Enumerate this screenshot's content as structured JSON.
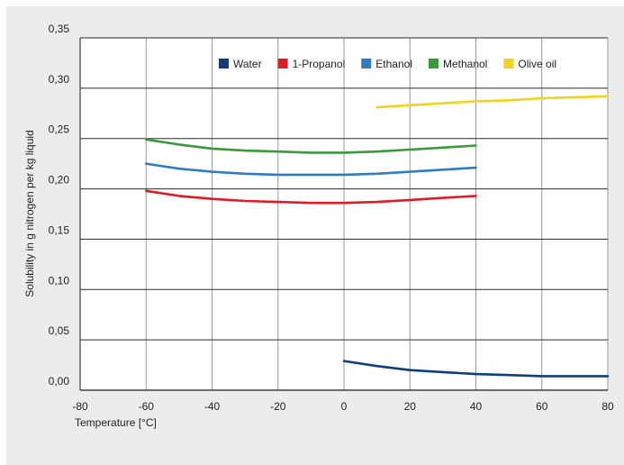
{
  "chart_data": {
    "type": "line",
    "title": "",
    "xlabel": "Temperature [°C]",
    "ylabel": "Solubility in g nitrogen per kg liquid",
    "xlim": [
      -80,
      80
    ],
    "ylim": [
      0,
      0.35
    ],
    "x_ticks": [
      -80,
      -60,
      -40,
      -20,
      0,
      20,
      40,
      60,
      80
    ],
    "x_tick_labels": [
      "-80",
      "-60",
      "-40",
      "-20",
      "0",
      "20",
      "40",
      "60",
      "80"
    ],
    "y_ticks": [
      0,
      0.05,
      0.1,
      0.15,
      0.2,
      0.25,
      0.3,
      0.35
    ],
    "y_tick_labels": [
      "0,00",
      "0,05",
      "0,10",
      "0,15",
      "0,20",
      "0,25",
      "0,30",
      "0,35"
    ],
    "grid": {
      "horizontal": true,
      "vertical": true
    },
    "legend_position": "top",
    "series": [
      {
        "name": "Water",
        "color": "#0d3e7e",
        "x": [
          0,
          10,
          20,
          30,
          40,
          50,
          60,
          70,
          80
        ],
        "y": [
          0.029,
          0.024,
          0.02,
          0.018,
          0.016,
          0.015,
          0.014,
          0.014,
          0.014
        ]
      },
      {
        "name": "1-Propanol",
        "color": "#e01b22",
        "x": [
          -60,
          -50,
          -40,
          -30,
          -20,
          -10,
          0,
          10,
          20,
          30,
          40
        ],
        "y": [
          0.198,
          0.193,
          0.19,
          0.188,
          0.187,
          0.186,
          0.186,
          0.187,
          0.189,
          0.191,
          0.193
        ]
      },
      {
        "name": "Ethanol",
        "color": "#2f7bc4",
        "x": [
          -60,
          -50,
          -40,
          -30,
          -20,
          -10,
          0,
          10,
          20,
          30,
          40
        ],
        "y": [
          0.225,
          0.22,
          0.217,
          0.215,
          0.214,
          0.214,
          0.214,
          0.215,
          0.217,
          0.219,
          0.221
        ]
      },
      {
        "name": "Methanol",
        "color": "#3a9a3a",
        "x": [
          -60,
          -50,
          -40,
          -30,
          -20,
          -10,
          0,
          10,
          20,
          30,
          40
        ],
        "y": [
          0.249,
          0.244,
          0.24,
          0.238,
          0.237,
          0.236,
          0.236,
          0.237,
          0.239,
          0.241,
          0.243
        ]
      },
      {
        "name": "Olive oil",
        "color": "#f2d21a",
        "x": [
          10,
          20,
          30,
          40,
          50,
          60,
          70,
          80
        ],
        "y": [
          0.281,
          0.283,
          0.285,
          0.287,
          0.288,
          0.29,
          0.291,
          0.292
        ]
      }
    ]
  }
}
